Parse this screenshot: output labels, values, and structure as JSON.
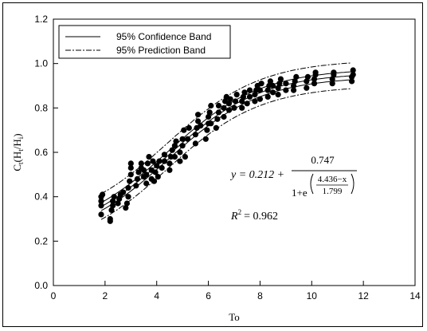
{
  "chart_data": {
    "type": "scatter",
    "xlabel": "To",
    "ylabel_main": "C",
    "ylabel_sub": "t",
    "ylabel_paren": "(H",
    "ylabel_sub2": "t",
    "ylabel_slash": "/H",
    "ylabel_sub3": "i",
    "ylabel_close": ")",
    "xlim": [
      0,
      14
    ],
    "ylim": [
      0.0,
      1.2
    ],
    "xticks": [
      "0",
      "2",
      "4",
      "6",
      "8",
      "10",
      "12",
      "14"
    ],
    "yticks": [
      "0.0",
      "0.2",
      "0.4",
      "0.6",
      "0.8",
      "1.0",
      "1.2"
    ],
    "grid": false,
    "legend": {
      "position": "top-left",
      "entries": [
        {
          "label": "95% Confidence Band",
          "style": "solid"
        },
        {
          "label": "95% Prediction Band",
          "style": "dash-dot"
        }
      ]
    },
    "fit": {
      "a": 0.212,
      "b": 0.747,
      "c": 4.436,
      "d": 1.799
    },
    "fit_range": [
      1.85,
      11.6
    ],
    "confidence_halfwidth": 0.018,
    "prediction_halfwidth": 0.058,
    "equation": {
      "y_eq": "y = 0.212 +",
      "numerator": "0.747",
      "denom_base": "1+e",
      "exp_numerator": "4.436−x",
      "exp_denominator": "1.799"
    },
    "r2": {
      "label": "R",
      "power": "2",
      "value": "= 0.962"
    },
    "points": [
      [
        1.85,
        0.32
      ],
      [
        1.85,
        0.36
      ],
      [
        1.85,
        0.38
      ],
      [
        1.85,
        0.4
      ],
      [
        1.9,
        0.41
      ],
      [
        2.2,
        0.29
      ],
      [
        2.2,
        0.3
      ],
      [
        2.25,
        0.34
      ],
      [
        2.3,
        0.36
      ],
      [
        2.3,
        0.38
      ],
      [
        2.35,
        0.4
      ],
      [
        2.5,
        0.37
      ],
      [
        2.55,
        0.39
      ],
      [
        2.6,
        0.41
      ],
      [
        2.7,
        0.42
      ],
      [
        2.8,
        0.35
      ],
      [
        2.85,
        0.37
      ],
      [
        2.9,
        0.4
      ],
      [
        2.9,
        0.44
      ],
      [
        2.95,
        0.47
      ],
      [
        3.0,
        0.5
      ],
      [
        3.0,
        0.53
      ],
      [
        3.0,
        0.55
      ],
      [
        3.2,
        0.45
      ],
      [
        3.25,
        0.48
      ],
      [
        3.3,
        0.51
      ],
      [
        3.4,
        0.53
      ],
      [
        3.4,
        0.55
      ],
      [
        3.5,
        0.49
      ],
      [
        3.5,
        0.52
      ],
      [
        3.6,
        0.46
      ],
      [
        3.6,
        0.5
      ],
      [
        3.65,
        0.55
      ],
      [
        3.7,
        0.58
      ],
      [
        3.8,
        0.48
      ],
      [
        3.8,
        0.52
      ],
      [
        3.85,
        0.56
      ],
      [
        3.9,
        0.47
      ],
      [
        3.95,
        0.51
      ],
      [
        4.0,
        0.54
      ],
      [
        4.05,
        0.49
      ],
      [
        4.1,
        0.56
      ],
      [
        4.2,
        0.53
      ],
      [
        4.3,
        0.56
      ],
      [
        4.3,
        0.59
      ],
      [
        4.5,
        0.52
      ],
      [
        4.5,
        0.55
      ],
      [
        4.55,
        0.58
      ],
      [
        4.6,
        0.61
      ],
      [
        4.7,
        0.58
      ],
      [
        4.7,
        0.63
      ],
      [
        4.75,
        0.65
      ],
      [
        4.9,
        0.56
      ],
      [
        4.9,
        0.6
      ],
      [
        5.0,
        0.63
      ],
      [
        5.0,
        0.66
      ],
      [
        5.05,
        0.7
      ],
      [
        5.1,
        0.58
      ],
      [
        5.2,
        0.66
      ],
      [
        5.25,
        0.71
      ],
      [
        5.5,
        0.64
      ],
      [
        5.5,
        0.68
      ],
      [
        5.55,
        0.71
      ],
      [
        5.6,
        0.74
      ],
      [
        5.6,
        0.77
      ],
      [
        5.7,
        0.72
      ],
      [
        5.9,
        0.66
      ],
      [
        5.95,
        0.7
      ],
      [
        6.0,
        0.73
      ],
      [
        6.0,
        0.76
      ],
      [
        6.05,
        0.78
      ],
      [
        6.1,
        0.81
      ],
      [
        6.1,
        0.73
      ],
      [
        6.3,
        0.71
      ],
      [
        6.35,
        0.75
      ],
      [
        6.4,
        0.78
      ],
      [
        6.4,
        0.81
      ],
      [
        6.6,
        0.76
      ],
      [
        6.6,
        0.8
      ],
      [
        6.65,
        0.83
      ],
      [
        6.7,
        0.85
      ],
      [
        6.8,
        0.79
      ],
      [
        6.8,
        0.82
      ],
      [
        6.85,
        0.84
      ],
      [
        7.0,
        0.8
      ],
      [
        7.05,
        0.83
      ],
      [
        7.1,
        0.86
      ],
      [
        7.3,
        0.8
      ],
      [
        7.3,
        0.83
      ],
      [
        7.35,
        0.85
      ],
      [
        7.4,
        0.87
      ],
      [
        7.5,
        0.82
      ],
      [
        7.6,
        0.85
      ],
      [
        7.6,
        0.88
      ],
      [
        7.8,
        0.83
      ],
      [
        7.8,
        0.86
      ],
      [
        7.85,
        0.88
      ],
      [
        7.9,
        0.9
      ],
      [
        8.0,
        0.84
      ],
      [
        8.0,
        0.88
      ],
      [
        8.05,
        0.91
      ],
      [
        8.3,
        0.85
      ],
      [
        8.3,
        0.88
      ],
      [
        8.35,
        0.9
      ],
      [
        8.4,
        0.92
      ],
      [
        8.5,
        0.87
      ],
      [
        8.5,
        0.9
      ],
      [
        8.7,
        0.86
      ],
      [
        8.7,
        0.89
      ],
      [
        8.75,
        0.91
      ],
      [
        8.8,
        0.93
      ],
      [
        9.0,
        0.88
      ],
      [
        9.0,
        0.91
      ],
      [
        9.3,
        0.88
      ],
      [
        9.3,
        0.9
      ],
      [
        9.35,
        0.92
      ],
      [
        9.4,
        0.94
      ],
      [
        9.8,
        0.89
      ],
      [
        9.8,
        0.92
      ],
      [
        9.85,
        0.94
      ],
      [
        10.1,
        0.91
      ],
      [
        10.1,
        0.93
      ],
      [
        10.15,
        0.95
      ],
      [
        10.15,
        0.96
      ],
      [
        10.8,
        0.91
      ],
      [
        10.8,
        0.93
      ],
      [
        10.85,
        0.95
      ],
      [
        10.85,
        0.96
      ],
      [
        11.55,
        0.92
      ],
      [
        11.55,
        0.94
      ],
      [
        11.6,
        0.95
      ],
      [
        11.6,
        0.97
      ]
    ]
  }
}
